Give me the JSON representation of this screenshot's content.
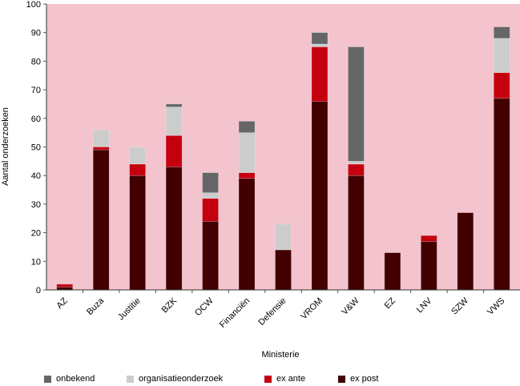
{
  "chart_data": {
    "type": "bar",
    "stacked": true,
    "title": "",
    "xlabel": "Ministerie",
    "ylabel": "Aantal onderzoeken",
    "ylim": [
      0,
      100
    ],
    "yticks": [
      0,
      10,
      20,
      30,
      40,
      50,
      60,
      70,
      80,
      90,
      100
    ],
    "grid": false,
    "legend_position": "bottom",
    "categories": [
      "AZ",
      "Buza",
      "Justitie",
      "BZK",
      "OCW",
      "Financiën",
      "Defensie",
      "VROM",
      "V&W",
      "EZ",
      "LNV",
      "SZW",
      "VWS"
    ],
    "series": [
      {
        "name": "ex post",
        "color": "#420000",
        "values": [
          1,
          49,
          40,
          43,
          24,
          39,
          14,
          66,
          40,
          13,
          17,
          27,
          67
        ]
      },
      {
        "name": "ex ante",
        "color": "#c4000f",
        "values": [
          1,
          1,
          4,
          11,
          8,
          2,
          0,
          19,
          4,
          0,
          2,
          0,
          9
        ]
      },
      {
        "name": "organisatieonderzoek",
        "color": "#cccccc",
        "values": [
          0,
          6,
          6,
          10,
          2,
          14,
          9,
          1,
          1,
          0,
          0,
          0,
          12
        ]
      },
      {
        "name": "onbekend",
        "color": "#666666",
        "values": [
          0,
          0,
          0,
          1,
          7,
          4,
          0,
          4,
          40,
          0,
          0,
          0,
          4
        ]
      }
    ],
    "legend_order": [
      "onbekend",
      "organisatieonderzoek",
      "ex ante",
      "ex post"
    ],
    "plot_background": "#f3c4cd"
  }
}
